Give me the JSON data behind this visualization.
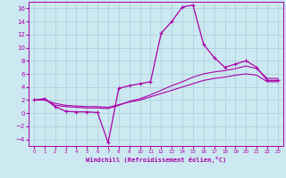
{
  "title": "",
  "xlabel": "Windchill (Refroidissement éolien,°C)",
  "background_color": "#cce8f0",
  "grid_color": "#aaccd8",
  "line_color": "#aa00aa",
  "xlim": [
    -0.5,
    23.5
  ],
  "ylim": [
    -5.0,
    17.0
  ],
  "xticks": [
    0,
    1,
    2,
    3,
    4,
    5,
    6,
    7,
    8,
    9,
    10,
    11,
    12,
    13,
    14,
    15,
    16,
    17,
    18,
    19,
    20,
    21,
    22,
    23
  ],
  "yticks": [
    -4,
    -2,
    0,
    2,
    4,
    6,
    8,
    10,
    12,
    14,
    16
  ],
  "curve1_x": [
    0,
    1,
    2,
    3,
    4,
    5,
    6,
    7,
    8,
    9,
    10,
    11,
    12,
    13,
    14,
    15,
    16,
    17,
    18,
    19,
    20,
    21,
    22,
    23
  ],
  "curve1_y": [
    2.0,
    2.2,
    1.0,
    0.3,
    0.2,
    0.2,
    0.1,
    -4.5,
    3.8,
    4.2,
    4.5,
    4.8,
    12.2,
    14.0,
    16.2,
    16.5,
    10.5,
    8.5,
    7.0,
    7.5,
    8.0,
    7.0,
    5.0,
    5.0
  ],
  "curve2_x": [
    0,
    1,
    2,
    3,
    4,
    5,
    6,
    7,
    8,
    9,
    10,
    11,
    12,
    13,
    14,
    15,
    16,
    17,
    18,
    19,
    20,
    21,
    22,
    23
  ],
  "curve2_y": [
    2.0,
    2.2,
    1.2,
    1.0,
    0.9,
    0.8,
    0.8,
    0.7,
    1.2,
    1.8,
    2.2,
    2.8,
    3.5,
    4.2,
    4.8,
    5.5,
    6.0,
    6.3,
    6.5,
    6.8,
    7.2,
    6.8,
    5.3,
    5.3
  ],
  "curve3_x": [
    0,
    1,
    2,
    3,
    4,
    5,
    6,
    7,
    8,
    9,
    10,
    11,
    12,
    13,
    14,
    15,
    16,
    17,
    18,
    19,
    20,
    21,
    22,
    23
  ],
  "curve3_y": [
    2.0,
    2.0,
    1.5,
    1.2,
    1.1,
    1.0,
    1.0,
    0.9,
    1.3,
    1.7,
    2.0,
    2.5,
    3.0,
    3.5,
    4.0,
    4.5,
    5.0,
    5.3,
    5.5,
    5.8,
    6.0,
    5.8,
    4.8,
    4.8
  ]
}
